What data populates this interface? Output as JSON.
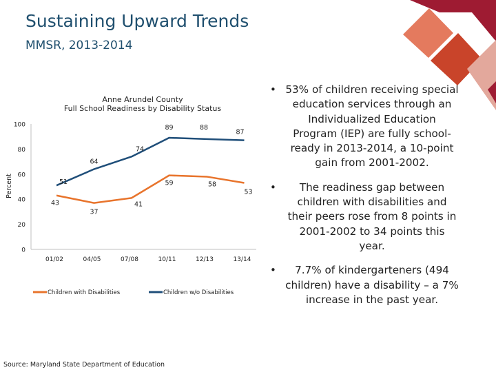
{
  "slide": {
    "title": "Sustaining Upward Trends",
    "subtitle": "MMSR, 2013-2014",
    "source": "Source: Maryland State Department of Education"
  },
  "colors": {
    "accent_dark_red": "#9e1b32",
    "accent_salmon": "#e47a5e",
    "accent_orange_red": "#c9442a",
    "accent_rose": "#e3a89c",
    "title_color": "#1f4f6e",
    "series_with": "#e8742c",
    "series_without": "#1f4e79"
  },
  "bullets": [
    "53% of children receiving special education services through an Individualized Education Program (IEP) are fully school-ready in 2013-2014, a 10-point gain from 2001-2002.",
    "The readiness gap between children with disabilities and their peers rose from 8 points in 2001-2002 to 34 points this year.",
    "7.7% of kindergarteners (494 children) have a disability – a 7% increase in the past year."
  ],
  "chart_data": {
    "type": "line",
    "title": "Anne Arundel County",
    "subtitle": "Full School Readiness by Disability Status",
    "xlabel": "",
    "ylabel": "Percent",
    "categories": [
      "01/02",
      "04/05",
      "07/08",
      "10/11",
      "12/13",
      "13/14"
    ],
    "ylim": [
      0,
      100
    ],
    "yticks": [
      0,
      20,
      40,
      60,
      80,
      100
    ],
    "grid": false,
    "legend_position": "bottom",
    "series": [
      {
        "name": "Children with Disabilities",
        "color": "#e8742c",
        "values": [
          43,
          37,
          41,
          59,
          58,
          53
        ]
      },
      {
        "name": "Children w/o Disabilities",
        "color": "#1f4e79",
        "values": [
          51,
          64,
          74,
          89,
          88,
          87
        ]
      }
    ]
  }
}
